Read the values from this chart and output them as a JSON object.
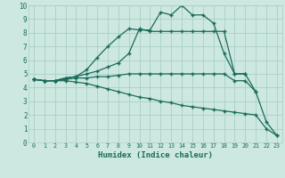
{
  "xlabel": "Humidex (Indice chaleur)",
  "bg_color": "#cce8e0",
  "grid_color": "#aad0c8",
  "line_color": "#1a6b5a",
  "line1_x": [
    0,
    1,
    2,
    3,
    4,
    5,
    6,
    7,
    8,
    9,
    10,
    11,
    12,
    13,
    14,
    15,
    16,
    17,
    18,
    19,
    20,
    21,
    22,
    23
  ],
  "line1_y": [
    4.6,
    4.5,
    4.5,
    4.7,
    4.8,
    5.3,
    6.2,
    7.0,
    7.7,
    8.3,
    8.2,
    8.2,
    9.5,
    9.3,
    10.0,
    9.3,
    9.3,
    8.7,
    6.5,
    5.0,
    5.0,
    3.7,
    1.5,
    0.5
  ],
  "line2_x": [
    0,
    1,
    2,
    3,
    4,
    5,
    6,
    7,
    8,
    9,
    10,
    11,
    12,
    13,
    14,
    15,
    16,
    17,
    18,
    19,
    20
  ],
  "line2_y": [
    4.6,
    4.5,
    4.5,
    4.7,
    4.8,
    5.0,
    5.2,
    5.5,
    5.8,
    6.5,
    8.3,
    8.1,
    8.1,
    8.1,
    8.1,
    8.1,
    8.1,
    8.1,
    8.1,
    5.0,
    5.0
  ],
  "line3_x": [
    0,
    1,
    2,
    3,
    4,
    5,
    6,
    7,
    8,
    9,
    10,
    11,
    12,
    13,
    14,
    15,
    16,
    17,
    18,
    19,
    20,
    21
  ],
  "line3_y": [
    4.6,
    4.5,
    4.5,
    4.6,
    4.7,
    4.7,
    4.8,
    4.8,
    4.9,
    5.0,
    5.0,
    5.0,
    5.0,
    5.0,
    5.0,
    5.0,
    5.0,
    5.0,
    5.0,
    4.5,
    4.5,
    3.7
  ],
  "line4_x": [
    0,
    1,
    2,
    3,
    4,
    5,
    6,
    7,
    8,
    9,
    10,
    11,
    12,
    13,
    14,
    15,
    16,
    17,
    18,
    19,
    20,
    21,
    22,
    23
  ],
  "line4_y": [
    4.6,
    4.5,
    4.5,
    4.5,
    4.4,
    4.3,
    4.1,
    3.9,
    3.7,
    3.5,
    3.3,
    3.2,
    3.0,
    2.9,
    2.7,
    2.6,
    2.5,
    2.4,
    2.3,
    2.2,
    2.1,
    2.0,
    1.0,
    0.5
  ],
  "xlim": [
    -0.5,
    23.5
  ],
  "ylim": [
    0,
    10
  ],
  "xticks": [
    0,
    1,
    2,
    3,
    4,
    5,
    6,
    7,
    8,
    9,
    10,
    11,
    12,
    13,
    14,
    15,
    16,
    17,
    18,
    19,
    20,
    21,
    22,
    23
  ],
  "yticks": [
    0,
    1,
    2,
    3,
    4,
    5,
    6,
    7,
    8,
    9,
    10
  ]
}
